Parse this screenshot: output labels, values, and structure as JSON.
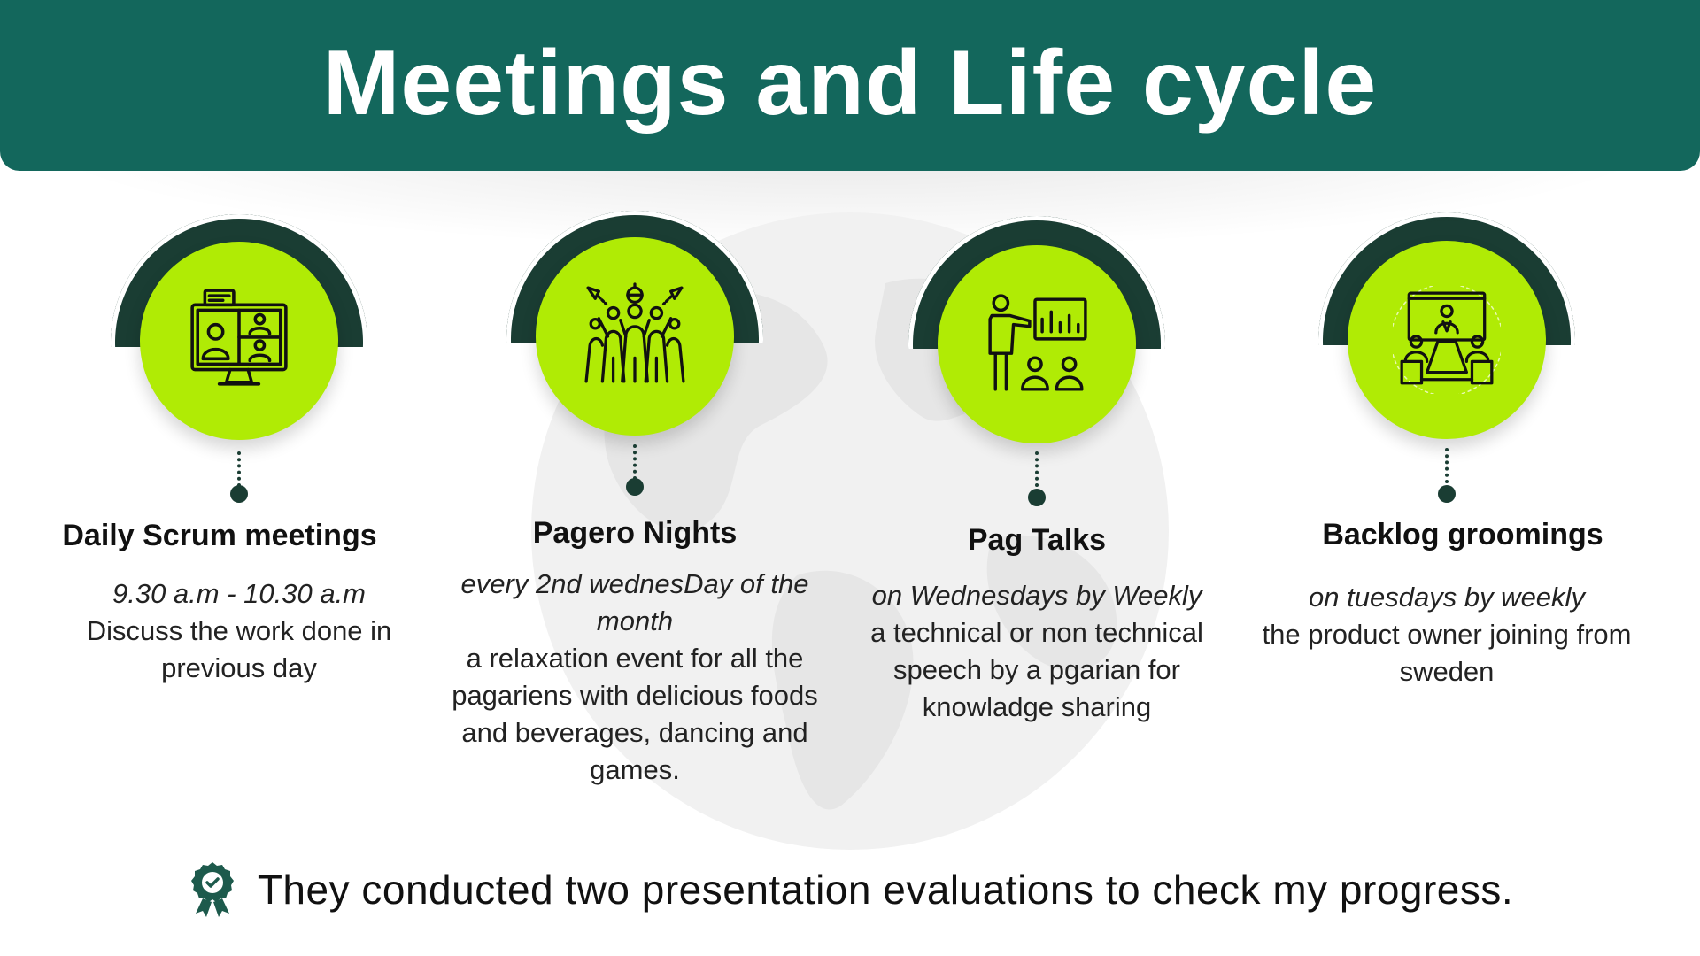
{
  "header": {
    "title": "Meetings and Life cycle"
  },
  "colors": {
    "header_bg": "#13675c",
    "accent_green": "#b0eb05",
    "dark_green": "#1a3d33"
  },
  "cards": [
    {
      "icon": "video-conference-icon",
      "title": "Daily Scrum meetings",
      "subtitle": "9.30 a.m - 10.30 a.m",
      "description": "Discuss the work done in previous day"
    },
    {
      "icon": "party-crowd-icon",
      "title": "Pagero Nights",
      "subtitle": "every 2nd wednesDay of the month",
      "description": "a relaxation event for all the pagariens with delicious foods and beverages, dancing and games."
    },
    {
      "icon": "presentation-talk-icon",
      "title": "Pag Talks",
      "subtitle": "on Wednesdays by Weekly",
      "description": "a technical or non technical speech by a pgarian for knowladge sharing"
    },
    {
      "icon": "meeting-room-icon",
      "title": "Backlog groomings",
      "subtitle": "on tuesdays by weekly",
      "description": "the product owner joining from sweden"
    }
  ],
  "footer": {
    "icon": "award-badge-icon",
    "text": "They conducted two presentation evaluations to check my progress."
  }
}
